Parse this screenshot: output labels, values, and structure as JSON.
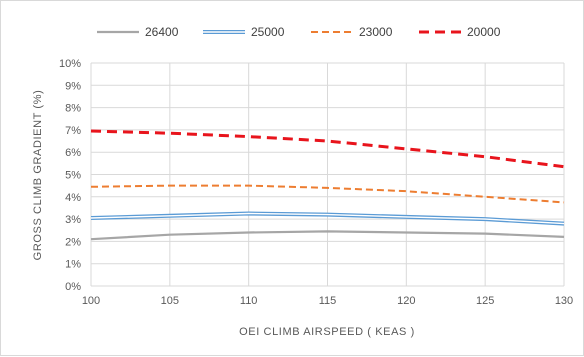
{
  "chart_data": {
    "type": "line",
    "xlabel": "OEI CLIMB AIRSPEED  ( KEAS )",
    "ylabel": "GROSS CLIMB GRADIENT  (%)",
    "x_ticks": [
      "100",
      "105",
      "110",
      "115",
      "120",
      "125",
      "130"
    ],
    "y_ticks": [
      "0%",
      "1%",
      "2%",
      "3%",
      "4%",
      "5%",
      "6%",
      "7%",
      "8%",
      "9%",
      "10%"
    ],
    "xlim": [
      100,
      130
    ],
    "ylim": [
      0,
      10
    ],
    "grid": true,
    "legend_position": "top",
    "x": [
      100,
      105,
      110,
      115,
      120,
      125,
      130
    ],
    "series": [
      {
        "name": "26400",
        "values": [
          2.1,
          2.3,
          2.4,
          2.45,
          2.4,
          2.35,
          2.2
        ],
        "color": "#a6a6a6",
        "style": "solid"
      },
      {
        "name": "25000",
        "values": [
          3.05,
          3.15,
          3.25,
          3.2,
          3.1,
          3.0,
          2.8
        ],
        "color": "#5b9bd5",
        "style": "double"
      },
      {
        "name": "23000",
        "values": [
          4.45,
          4.5,
          4.5,
          4.4,
          4.25,
          4.0,
          3.75
        ],
        "color": "#ed7d31",
        "style": "dash"
      },
      {
        "name": "20000",
        "values": [
          6.95,
          6.85,
          6.7,
          6.5,
          6.15,
          5.8,
          5.35
        ],
        "color": "#e8141c",
        "style": "bold-dash"
      }
    ]
  }
}
